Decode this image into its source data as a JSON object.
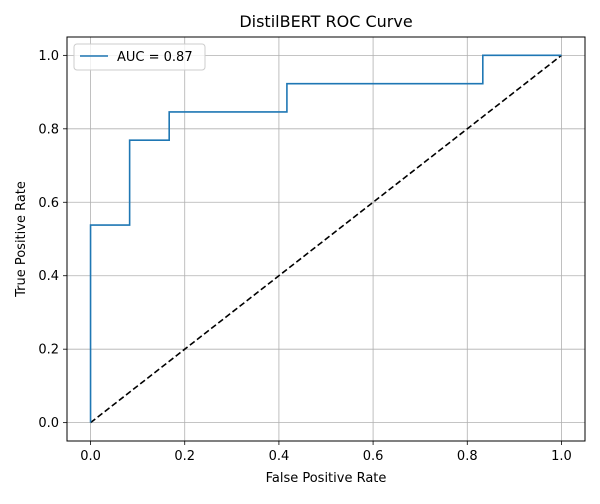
{
  "chart_data": {
    "type": "line",
    "title": "DistilBERT ROC Curve",
    "xlabel": "False Positive Rate",
    "ylabel": "True Positive Rate",
    "xlim": [
      -0.05,
      1.05
    ],
    "ylim": [
      -0.05,
      1.05
    ],
    "xticks": [
      0.0,
      0.2,
      0.4,
      0.6,
      0.8,
      1.0
    ],
    "yticks": [
      0.0,
      0.2,
      0.4,
      0.6,
      0.8,
      1.0
    ],
    "xtick_labels": [
      "0.0",
      "0.2",
      "0.4",
      "0.6",
      "0.8",
      "1.0"
    ],
    "ytick_labels": [
      "0.0",
      "0.2",
      "0.4",
      "0.6",
      "0.8",
      "1.0"
    ],
    "grid": true,
    "legend_position": "top-left",
    "series": [
      {
        "name": "AUC = 0.87",
        "style": "solid",
        "color": "#1f77b4",
        "x": [
          0.0,
          0.0,
          0.083,
          0.083,
          0.167,
          0.167,
          0.417,
          0.417,
          0.833,
          0.833,
          1.0
        ],
        "y": [
          0.0,
          0.538,
          0.538,
          0.769,
          0.769,
          0.846,
          0.846,
          0.923,
          0.923,
          1.0,
          1.0
        ]
      },
      {
        "style": "dashed",
        "color": "#000000",
        "x": [
          0.0,
          1.0
        ],
        "y": [
          0.0,
          1.0
        ]
      }
    ]
  }
}
